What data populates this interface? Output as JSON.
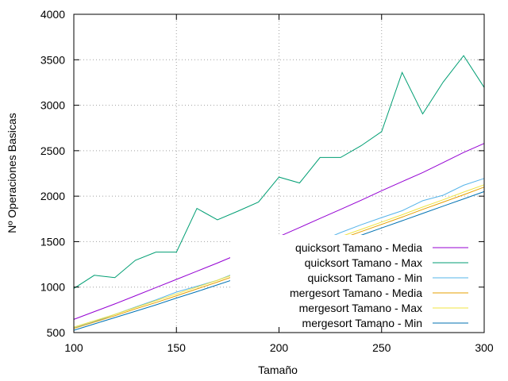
{
  "chart_data": {
    "type": "line",
    "xlabel": "Tamaño",
    "ylabel": "Nº Operaciones Basicas",
    "xlim": [
      100,
      300
    ],
    "ylim": [
      500,
      4000
    ],
    "xticks": [
      100,
      150,
      200,
      250,
      300
    ],
    "yticks": [
      500,
      1000,
      1500,
      2000,
      2500,
      3000,
      3500,
      4000
    ],
    "grid": true,
    "legend_position": "bottom-right",
    "x": [
      100,
      110,
      120,
      130,
      140,
      150,
      160,
      170,
      180,
      190,
      200,
      210,
      220,
      230,
      240,
      250,
      260,
      270,
      280,
      290,
      300
    ],
    "series": [
      {
        "name": "quicksort Tamano - Media",
        "color": "#9400d3",
        "values": [
          645,
          730,
          815,
          905,
          995,
          1085,
          1175,
          1265,
          1360,
          1460,
          1555,
          1655,
          1755,
          1855,
          1955,
          2060,
          2160,
          2260,
          2370,
          2480,
          2580
        ]
      },
      {
        "name": "quicksort Tamano - Max",
        "color": "#009e73",
        "values": [
          985,
          1130,
          1105,
          1295,
          1385,
          1385,
          1865,
          1740,
          1835,
          1935,
          2210,
          2145,
          2425,
          2425,
          2555,
          2710,
          3360,
          2905,
          3255,
          3545,
          3195
        ]
      },
      {
        "name": "quicksort Tamano - Min",
        "color": "#56b4e9",
        "values": [
          550,
          620,
          700,
          780,
          860,
          945,
          1010,
          1075,
          1165,
          1245,
          1285,
          1395,
          1505,
          1600,
          1685,
          1765,
          1840,
          1950,
          2010,
          2120,
          2195
        ]
      },
      {
        "name": "mergesort Tamano - Media",
        "color": "#e69f00",
        "values": [
          545,
          615,
          685,
          760,
          830,
          905,
          980,
          1055,
          1135,
          1210,
          1290,
          1370,
          1450,
          1530,
          1610,
          1690,
          1770,
          1855,
          1935,
          2015,
          2100
        ]
      },
      {
        "name": "mergesort Tamano - Max",
        "color": "#f0e442",
        "values": [
          560,
          630,
          700,
          775,
          850,
          925,
          1000,
          1075,
          1155,
          1230,
          1310,
          1390,
          1470,
          1555,
          1635,
          1715,
          1795,
          1880,
          1960,
          2045,
          2125
        ]
      },
      {
        "name": "mergesort Tamano - Min",
        "color": "#0072b2",
        "values": [
          525,
          595,
          665,
          735,
          805,
          880,
          950,
          1025,
          1100,
          1180,
          1255,
          1335,
          1410,
          1490,
          1570,
          1650,
          1730,
          1810,
          1890,
          1970,
          2050
        ]
      }
    ]
  }
}
